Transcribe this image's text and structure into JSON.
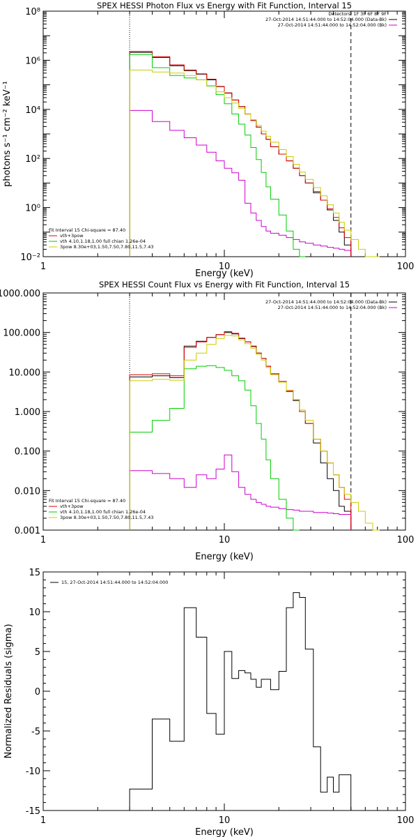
{
  "chart_data": [
    {
      "type": "line",
      "title": "SPEX HESSI Photon Flux vs Energy with Fit Function, Interval 15",
      "xlabel": "Energy (keV)",
      "ylabel": "photons s⁻¹ cm⁻² keV⁻¹",
      "x_scale": "log",
      "y_scale": "log",
      "xlim": [
        1,
        100
      ],
      "ylim": [
        0.01,
        100000000
      ],
      "x_ticks": [
        {
          "v": 1,
          "label": "1"
        },
        {
          "v": 10,
          "label": "10"
        },
        {
          "v": 100,
          "label": "100"
        }
      ],
      "y_ticks": [
        {
          "v": 0.01,
          "label": "10⁻²"
        },
        {
          "v": 1,
          "label": "10⁰"
        },
        {
          "v": 100,
          "label": "10²"
        },
        {
          "v": 10000,
          "label": "10⁴"
        },
        {
          "v": 1000000,
          "label": "10⁶"
        },
        {
          "v": 100000000,
          "label": "10⁸"
        }
      ],
      "vlines": [
        {
          "x": 3,
          "style": "dotted"
        },
        {
          "x": 50,
          "style": "dashed"
        }
      ],
      "legend_top": [
        "Detectors: 1F 3F 6F 8F 9F",
        "27-Oct-2014 14:51:44.000 to 14:52:04.000 (Data-Bk)",
        "27-Oct-2014 14:51:44.000 to 14:52:04.000 (Bk)"
      ],
      "legend_bottom": [
        "Fit Interval 15   Chi-square = 87.40",
        "vth+3pow",
        "vth 4.10,1.18,1.00  full chian 1.26e-04",
        "3pow 8.30e+03,1.50,7.50,7.80,11.5,7.43"
      ],
      "edges": [
        3,
        4,
        5,
        6,
        7,
        8,
        9,
        10,
        11,
        12,
        13,
        14,
        15,
        16,
        17,
        18,
        20,
        22,
        24,
        26,
        28,
        31,
        34,
        37,
        40,
        43,
        46,
        50,
        55,
        60,
        66,
        72
      ],
      "series": [
        {
          "name": "Data-Bk",
          "color": "#000000",
          "values": [
            2100000,
            1300000,
            600000,
            380000,
            270000,
            160000,
            84000,
            46000,
            24000,
            13000,
            6500,
            3500,
            1900,
            1000,
            600,
            300,
            150,
            80,
            40,
            20,
            10,
            4,
            2,
            0.8,
            0.3,
            0.1,
            0.03
          ]
        },
        {
          "name": "Bk",
          "color": "#cc00cc",
          "values": [
            9000,
            3200,
            1400,
            700,
            350,
            180,
            80,
            40,
            26,
            13,
            1.5,
            0.6,
            0.3,
            0.17,
            0.11,
            0.09,
            0.075,
            0.06,
            0.05,
            0.04,
            0.035,
            0.03,
            0.027,
            0.024,
            0.022,
            0.02,
            0.018
          ]
        },
        {
          "name": "vth+3pow",
          "color": "#dd0000",
          "values": [
            2300000,
            1400000,
            650000,
            400000,
            280000,
            170000,
            86000,
            47000,
            24000,
            13000,
            6400,
            3500,
            1900,
            1000,
            600,
            300,
            150,
            80,
            40,
            20,
            10,
            4.5,
            2,
            0.9,
            0.4,
            0.15,
            0.06
          ]
        },
        {
          "name": "vth",
          "color": "#00cc00",
          "values": [
            1700000,
            500000,
            240000,
            190000,
            160000,
            90000,
            40000,
            17000,
            6500,
            2500,
            900,
            280,
            90,
            27,
            7,
            2.2,
            0.5,
            0.11,
            0.02,
            0.004
          ]
        },
        {
          "name": "3pow",
          "color": "#cccc00",
          "values": [
            400000,
            330000,
            300000,
            240000,
            160000,
            93000,
            52000,
            30000,
            18000,
            11000,
            6500,
            3800,
            2200,
            1300,
            800,
            460,
            230,
            120,
            58,
            28,
            14,
            6.5,
            3,
            1.3,
            0.6,
            0.25,
            0.12,
            0.05,
            0.02,
            0.008,
            0.003
          ]
        }
      ]
    },
    {
      "type": "line",
      "title": "SPEX HESSI Count Flux vs Energy with Fit Function, Interval 15",
      "xlabel": "Energy (keV)",
      "ylabel": "",
      "x_scale": "log",
      "y_scale": "log",
      "xlim": [
        1,
        100
      ],
      "ylim": [
        0.001,
        1000
      ],
      "x_ticks": [
        {
          "v": 1,
          "label": "1"
        },
        {
          "v": 10,
          "label": "10"
        },
        {
          "v": 100,
          "label": "100"
        }
      ],
      "y_ticks": [
        {
          "v": 0.001,
          "label": "0.001"
        },
        {
          "v": 0.01,
          "label": "0.010"
        },
        {
          "v": 0.1,
          "label": "0.100"
        },
        {
          "v": 1,
          "label": "1.000"
        },
        {
          "v": 10,
          "label": "10.000"
        },
        {
          "v": 100,
          "label": "100.000"
        },
        {
          "v": 1000,
          "label": "1000.000"
        }
      ],
      "vlines": [
        {
          "x": 3,
          "style": "dotted"
        },
        {
          "x": 50,
          "style": "dashed"
        }
      ],
      "legend_top": [
        "27-Oct-2014 14:51:44.000 to 14:52:04.000 (Data-Bk)",
        "27-Oct-2014 14:51:44.000 to 14:52:04.000 (Bk)"
      ],
      "legend_bottom": [
        "Fit Interval 15   Chi-square = 87.40",
        "vth+3pow",
        "vth 4.10,1.18,1.00  full chian 1.26e-04",
        "3pow 8.30e+03,1.50,7.50,7.80,11.5,7.43"
      ],
      "edges": [
        3,
        4,
        5,
        6,
        7,
        8,
        9,
        10,
        11,
        12,
        13,
        14,
        15,
        16,
        17,
        18,
        20,
        22,
        24,
        26,
        28,
        31,
        34,
        37,
        40,
        43,
        46,
        50,
        55,
        60,
        66,
        72
      ],
      "series": [
        {
          "name": "Data-Bk",
          "color": "#000000",
          "values": [
            7.5,
            8,
            7.2,
            45,
            60,
            75,
            88,
            100,
            92,
            70,
            58,
            45,
            30,
            22,
            14,
            9,
            5.5,
            3.2,
            1.9,
            1.0,
            0.5,
            0.16,
            0.05,
            0.02,
            0.01,
            0.004,
            0.003
          ]
        },
        {
          "name": "Bk",
          "color": "#cc00cc",
          "values": [
            0.032,
            0.027,
            0.02,
            0.012,
            0.025,
            0.02,
            0.035,
            0.08,
            0.03,
            0.012,
            0.008,
            0.006,
            0.005,
            0.0045,
            0.004,
            0.0038,
            0.0035,
            0.0033,
            0.0032,
            0.003,
            0.003,
            0.0028,
            0.0028,
            0.0027,
            0.0026,
            0.0025,
            0.0025
          ]
        },
        {
          "name": "vth+3pow",
          "color": "#dd0000",
          "values": [
            8.5,
            9,
            8,
            42,
            58,
            75,
            88,
            105,
            95,
            72,
            58,
            44,
            30,
            22,
            14,
            9,
            5.8,
            3.4,
            2.0,
            1.0,
            0.5,
            0.2,
            0.1,
            0.05,
            0.025,
            0.012,
            0.006
          ]
        },
        {
          "name": "vth",
          "color": "#00cc00",
          "values": [
            0.3,
            0.6,
            1.2,
            12,
            14,
            14.5,
            13,
            11,
            8,
            6,
            3.5,
            1.4,
            0.5,
            0.2,
            0.06,
            0.02,
            0.006,
            0.002,
            0.0005
          ]
        },
        {
          "name": "3pow",
          "color": "#cccc00",
          "values": [
            6,
            6.5,
            6.2,
            20,
            30,
            50,
            70,
            85,
            82,
            65,
            52,
            40,
            28,
            20,
            13,
            8.5,
            5.5,
            3.3,
            2.0,
            1.1,
            0.6,
            0.2,
            0.1,
            0.05,
            0.025,
            0.012,
            0.008,
            0.005,
            0.003,
            0.0015,
            0.0008
          ]
        }
      ]
    },
    {
      "type": "line",
      "title": "",
      "xlabel": "Energy (keV)",
      "ylabel": "Normalized Residuals (sigma)",
      "x_scale": "log",
      "y_scale": "linear",
      "xlim": [
        1,
        100
      ],
      "ylim": [
        -15,
        15
      ],
      "x_ticks": [
        {
          "v": 1,
          "label": "1"
        },
        {
          "v": 10,
          "label": "10"
        },
        {
          "v": 100,
          "label": "100"
        }
      ],
      "y_ticks": [
        {
          "v": -15,
          "label": "-15"
        },
        {
          "v": -10,
          "label": "-10"
        },
        {
          "v": -5,
          "label": "-5"
        },
        {
          "v": 0,
          "label": "0"
        },
        {
          "v": 5,
          "label": "5"
        },
        {
          "v": 10,
          "label": "10"
        },
        {
          "v": 15,
          "label": "15"
        }
      ],
      "legend_top": [
        "15, 27-Oct-2014 14:51:44.000 to 14:52:04.000"
      ],
      "edges": [
        3,
        4,
        5,
        6,
        7,
        8,
        9,
        10,
        11,
        12,
        13,
        14,
        15,
        16,
        17,
        18,
        20,
        22,
        24,
        26,
        28,
        31,
        34,
        37,
        40,
        43,
        46,
        50
      ],
      "series": [
        {
          "name": "15, 27-Oct-2014 14:51:44.000 to 14:52:04.000",
          "color": "#000000",
          "values": [
            -12.3,
            -3.5,
            -6.3,
            10.5,
            6.8,
            -2.8,
            -5.4,
            5,
            1.6,
            2.6,
            2.3,
            1.5,
            0.5,
            1.5,
            1.5,
            0.2,
            2.5,
            10.5,
            12.4,
            11.8,
            5.3,
            -7,
            -12.7,
            -10.8,
            -12.7,
            -10.5,
            -10.5
          ]
        }
      ]
    }
  ]
}
